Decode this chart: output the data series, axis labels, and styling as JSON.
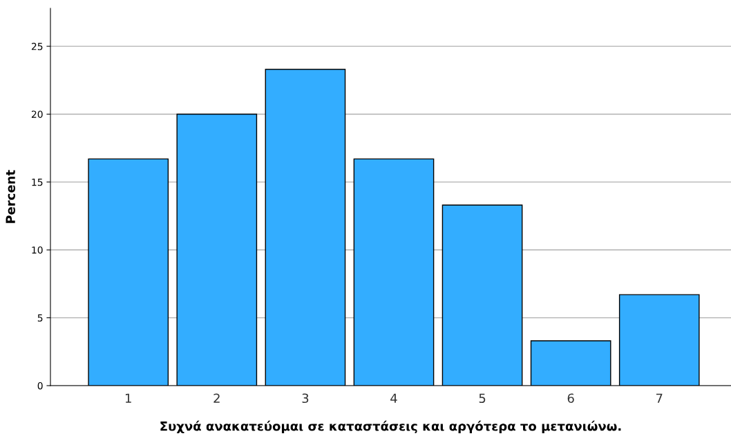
{
  "chart_data": {
    "type": "bar",
    "xlabel": "Συχνά ανακατεύομαι σε καταστάσεις και αργότερα το μετανιώνω.",
    "ylabel": "Percent",
    "categories": [
      "1",
      "2",
      "3",
      "4",
      "5",
      "6",
      "7"
    ],
    "values": [
      16.7,
      20.0,
      23.3,
      16.7,
      13.3,
      3.3,
      6.7
    ],
    "color": "#33adff",
    "ylim": [
      0,
      27.8
    ],
    "yticks": [
      0,
      5,
      10,
      15,
      20,
      25
    ],
    "grid": "y"
  }
}
